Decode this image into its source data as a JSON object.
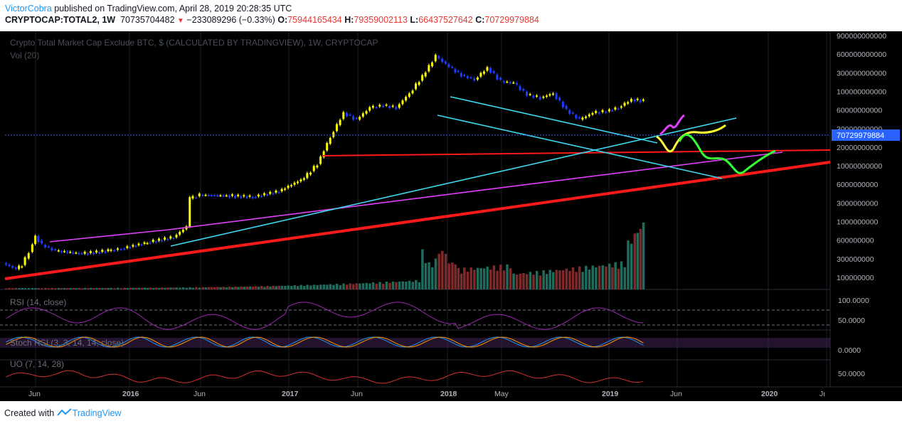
{
  "header": {
    "author": "VictorCobra",
    "published_text": " published on TradingView.com, April 28, 2019 20:28:35 UTC",
    "symbol": "CRYPTOCAP:TOTAL2, 1W",
    "last": "70735704482",
    "change_arrow": "▼",
    "change": "−233089296 (−0.33%)",
    "open_label": "O:",
    "open": "75944165434",
    "high_label": "H:",
    "high": "79359002113",
    "low_label": "L:",
    "low": "66437527642",
    "close_label": "C:",
    "close": "70729979884"
  },
  "main_title": "Crypto Total Market Cap Exclude BTC, $ (CALCULATED BY TRADINGVIEW), 1W, CRYPTOCAP",
  "vol_label": "Vol (20)",
  "indicators": {
    "rsi": "RSI (14, close)",
    "stoch": "Stoch RSI (3, 3, 14, 14, close)",
    "uo": "UO (7, 14, 28)"
  },
  "price_badge": "70729979884",
  "price_axis_labels": [
    "900000000000",
    "600000000000",
    "300000000000",
    "100000000000",
    "60000000000",
    "30000000000",
    "20000000000",
    "10000000000",
    "6000000000",
    "3000000000",
    "1000000000",
    "600000000",
    "300000000",
    "100000000"
  ],
  "rsi_axis": [
    "100.0000",
    "50.0000"
  ],
  "stoch_axis": [
    "0.0000"
  ],
  "uo_axis": [
    "50.0000"
  ],
  "time_axis": [
    "Jun",
    "2016",
    "Jun",
    "2017",
    "Jun",
    "2018",
    "May",
    "2019",
    "Jun",
    "2020",
    "Jı"
  ],
  "footer": {
    "created_with": "Created with",
    "brand": "TradingView"
  },
  "colors": {
    "up": "#ffff00",
    "down": "#1e3cff",
    "red_line": "#ff1a1a",
    "cyan": "#3fd8f0",
    "magenta": "#e040fb",
    "green_proj": "#33ff33",
    "vol_up": "#1f6b5c",
    "vol_down": "#7f2a2a"
  },
  "chart_data": {
    "type": "candlestick",
    "scale": "log",
    "x_range": [
      "2015-04-01",
      "2020-07-01"
    ],
    "y_range": [
      90000000,
      1000000000000
    ],
    "series": [
      {
        "name": "TOTAL2",
        "points": [
          [
            "2015-04-01",
            150000000
          ],
          [
            "2015-05-01",
            120000000
          ],
          [
            "2015-05-15",
            140000000
          ],
          [
            "2015-06-01",
            230000000
          ],
          [
            "2015-06-15",
            420000000
          ],
          [
            "2015-07-01",
            300000000
          ],
          [
            "2015-08-01",
            240000000
          ],
          [
            "2015-10-01",
            215000000
          ],
          [
            "2015-12-01",
            240000000
          ],
          [
            "2016-01-01",
            260000000
          ],
          [
            "2016-03-01",
            330000000
          ],
          [
            "2016-05-01",
            400000000
          ],
          [
            "2016-06-01",
            600000000
          ],
          [
            "2016-06-08",
            1750000000
          ],
          [
            "2016-07-01",
            2000000000
          ],
          [
            "2016-09-01",
            1950000000
          ],
          [
            "2016-11-01",
            1850000000
          ],
          [
            "2017-01-01",
            2300000000
          ],
          [
            "2017-03-01",
            3800000000
          ],
          [
            "2017-04-01",
            6500000000
          ],
          [
            "2017-05-01",
            18000000000
          ],
          [
            "2017-06-01",
            45000000000
          ],
          [
            "2017-07-01",
            35000000000
          ],
          [
            "2017-08-01",
            55000000000
          ],
          [
            "2017-09-01",
            60000000000
          ],
          [
            "2017-10-01",
            55000000000
          ],
          [
            "2017-11-01",
            95000000000
          ],
          [
            "2017-12-01",
            180000000000
          ],
          [
            "2018-01-01",
            390000000000
          ],
          [
            "2018-02-01",
            260000000000
          ],
          [
            "2018-03-01",
            190000000000
          ],
          [
            "2018-04-01",
            160000000000
          ],
          [
            "2018-05-01",
            250000000000
          ],
          [
            "2018-06-01",
            150000000000
          ],
          [
            "2018-07-01",
            140000000000
          ],
          [
            "2018-08-01",
            90000000000
          ],
          [
            "2018-09-01",
            80000000000
          ],
          [
            "2018-10-01",
            95000000000
          ],
          [
            "2018-11-01",
            50000000000
          ],
          [
            "2018-12-01",
            35000000000
          ],
          [
            "2019-01-01",
            45000000000
          ],
          [
            "2019-02-01",
            48000000000
          ],
          [
            "2019-03-01",
            55000000000
          ],
          [
            "2019-04-01",
            75000000000
          ],
          [
            "2019-04-28",
            70730000000
          ]
        ]
      }
    ]
  }
}
